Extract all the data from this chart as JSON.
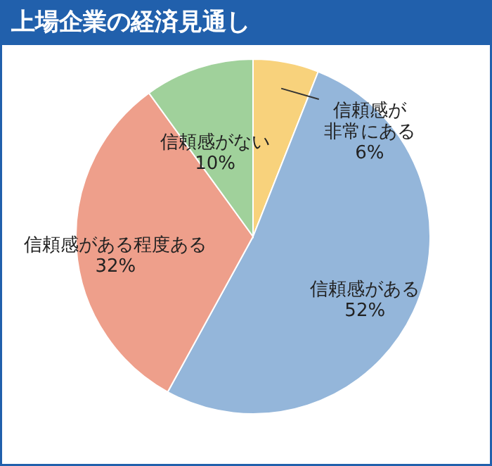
{
  "chart_data": {
    "type": "pie",
    "title": "上場企業の経済見通し",
    "categories": [
      "信頼感が非常にある",
      "信頼感がある",
      "信頼感がある程度ある",
      "信頼感がない"
    ],
    "values": [
      6,
      52,
      32,
      10
    ],
    "colors": [
      "#f8d27c",
      "#94b6da",
      "#ee9f8b",
      "#a0d19b"
    ],
    "value_labels": [
      "6%",
      "52%",
      "32%",
      "10%"
    ]
  }
}
